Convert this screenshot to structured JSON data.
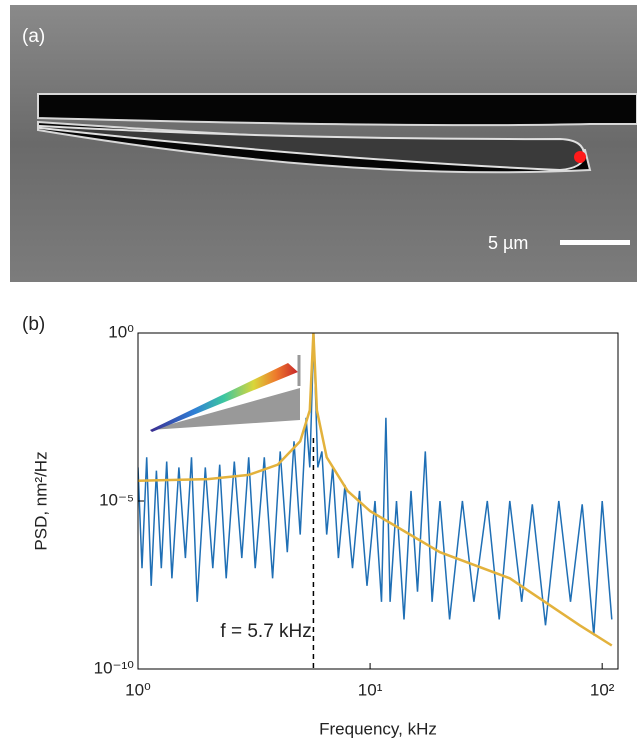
{
  "panel_a": {
    "label": "(a)",
    "scale_bar": "5 µm"
  },
  "chart_data": {
    "type": "line",
    "panel_label": "(b)",
    "xlabel": "Frequency, kHz",
    "ylabel": "PSD, nm²/Hz",
    "annotation": "f = 5.7 kHz",
    "vline": 5.7,
    "xscale": "log",
    "yscale": "log",
    "xlim": [
      1,
      117
    ],
    "ylim": [
      1e-10,
      1
    ],
    "xticks": [
      {
        "value": 1,
        "label": "10⁰"
      },
      {
        "value": 10,
        "label": "10¹"
      },
      {
        "value": 100,
        "label": "10²"
      }
    ],
    "yticks": [
      {
        "value": 1e-10,
        "label": "10⁻¹⁰"
      },
      {
        "value": 1e-05,
        "label": "10⁻⁵"
      },
      {
        "value": 1,
        "label": "10⁰"
      }
    ],
    "series": [
      {
        "color": "#1f6fb5",
        "x": [
          1,
          1.04,
          1.09,
          1.14,
          1.2,
          1.26,
          1.33,
          1.4,
          1.5,
          1.6,
          1.7,
          1.8,
          1.95,
          2.1,
          2.25,
          2.4,
          2.6,
          2.8,
          3.0,
          3.2,
          3.5,
          3.8,
          4.1,
          4.4,
          4.7,
          5.0,
          5.3,
          5.5,
          5.65,
          5.72,
          5.8,
          5.95,
          6.2,
          6.5,
          6.9,
          7.3,
          7.8,
          8.4,
          9,
          9.7,
          10.5,
          11.2,
          11.7,
          12.2,
          13,
          14,
          15,
          16,
          17.3,
          18.5,
          20,
          22,
          25,
          28,
          32,
          36,
          40,
          45,
          50,
          57,
          65,
          73,
          82,
          92,
          100,
          110
        ],
        "values": [
          0.0001,
          1e-07,
          0.0002,
          3e-08,
          8e-05,
          1e-07,
          0.00015,
          5e-08,
          0.0001,
          2e-07,
          0.0002,
          1e-08,
          0.0001,
          1e-07,
          0.00012,
          5e-08,
          0.00015,
          2e-07,
          0.0002,
          1e-07,
          0.0002,
          5e-08,
          0.0003,
          3e-07,
          0.0006,
          1e-06,
          0.003,
          0.0001,
          0.05,
          1,
          0.03,
          0.0001,
          0.0003,
          1e-06,
          0.0001,
          2e-07,
          3e-05,
          1e-07,
          2e-05,
          3e-08,
          1e-05,
          1e-08,
          0.003,
          1e-08,
          1e-05,
          3e-09,
          2e-05,
          2e-08,
          0.0003,
          1e-08,
          1e-05,
          3e-09,
          1e-05,
          1e-08,
          1e-05,
          3e-09,
          1e-05,
          1e-08,
          8e-06,
          2e-09,
          1e-05,
          1e-08,
          8e-06,
          1e-09,
          1e-05,
          3e-09
        ]
      },
      {
        "color": "#e3b23c",
        "x": [
          1,
          2,
          3,
          4,
          5,
          5.5,
          5.7,
          5.9,
          6.5,
          8,
          10,
          20,
          40,
          80,
          110
        ],
        "values": [
          4e-05,
          4.5e-05,
          6e-05,
          0.00012,
          0.0006,
          0.005,
          1,
          0.005,
          0.0002,
          2e-05,
          5e-06,
          3e-07,
          5e-08,
          2e-09,
          5e-10
        ]
      }
    ]
  }
}
